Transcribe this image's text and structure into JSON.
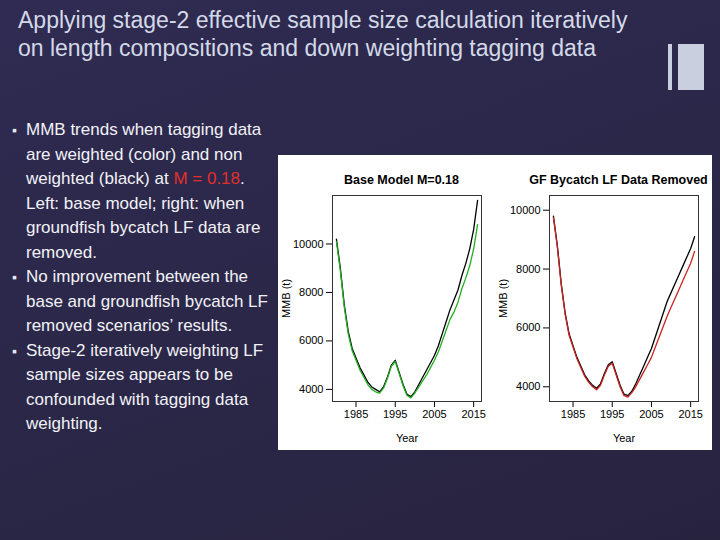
{
  "title": "Applying stage-2 effective sample size calculation iteratively on length compositions and down weighting tagging data",
  "bullets": [
    [
      {
        "text": "MMB trends when tagging data are weighted (color) and non weighted (black) at "
      },
      {
        "text": "M = 0.18",
        "color": "#e0302a"
      },
      {
        "text": ". Left: base model; right: when groundfish bycatch LF data are removed."
      }
    ],
    [
      {
        "text": "No improvement between the base and groundfish bycatch LF removed scenarios’ results."
      }
    ],
    [
      {
        "text": "Stage-2 iteratively weighting LF sample sizes appears to be confounded with tagging data weighting."
      }
    ]
  ],
  "chart_data": [
    {
      "type": "line",
      "title": "Base Model  M=0.18",
      "x_label": "Year",
      "y_label": "MMB (t)",
      "x": [
        1980,
        1981,
        1982,
        1983,
        1984,
        1985,
        1986,
        1987,
        1988,
        1989,
        1990,
        1991,
        1992,
        1993,
        1994,
        1995,
        1996,
        1997,
        1998,
        1999,
        2000,
        2001,
        2002,
        2003,
        2004,
        2005,
        2006,
        2007,
        2008,
        2009,
        2010,
        2011,
        2012,
        2013,
        2014,
        2015,
        2016
      ],
      "series": [
        {
          "color": "#000000",
          "values": [
            10200,
            9000,
            7500,
            6400,
            5700,
            5300,
            4900,
            4600,
            4300,
            4100,
            4000,
            3900,
            4100,
            4500,
            5000,
            5200,
            4700,
            4200,
            3800,
            3700,
            3900,
            4200,
            4500,
            4800,
            5100,
            5400,
            5800,
            6300,
            6800,
            7300,
            7700,
            8100,
            8700,
            9200,
            9800,
            10600,
            11800
          ]
        },
        {
          "color": "#22b022",
          "values": [
            10100,
            8900,
            7400,
            6300,
            5600,
            5200,
            4800,
            4500,
            4200,
            4000,
            3900,
            3850,
            4050,
            4450,
            4950,
            5150,
            4650,
            4150,
            3750,
            3650,
            3850,
            4100,
            4350,
            4600,
            4900,
            5200,
            5550,
            6000,
            6450,
            6900,
            7200,
            7600,
            8150,
            8600,
            9100,
            9800,
            10800
          ]
        }
      ],
      "xlim": [
        1979,
        2017
      ],
      "xticks": [
        1985,
        1995,
        2005,
        2015
      ],
      "ylim": [
        3500,
        12000
      ],
      "yticks": [
        4000,
        6000,
        8000,
        10000
      ]
    },
    {
      "type": "line",
      "title": "GF Bycatch LF Data Removed",
      "x_label": "Year",
      "y_label": "MMB (t)",
      "x": [
        1980,
        1981,
        1982,
        1983,
        1984,
        1985,
        1986,
        1987,
        1988,
        1989,
        1990,
        1991,
        1992,
        1993,
        1994,
        1995,
        1996,
        1997,
        1998,
        1999,
        2000,
        2001,
        2002,
        2003,
        2004,
        2005,
        2006,
        2007,
        2008,
        2009,
        2010,
        2011,
        2012,
        2013,
        2014,
        2015,
        2016
      ],
      "series": [
        {
          "color": "#000000",
          "values": [
            9800,
            8800,
            7500,
            6500,
            5800,
            5400,
            5000,
            4700,
            4400,
            4200,
            4050,
            3950,
            4100,
            4450,
            4750,
            4850,
            4450,
            4050,
            3750,
            3700,
            3850,
            4100,
            4400,
            4700,
            5000,
            5300,
            5700,
            6100,
            6500,
            6900,
            7200,
            7500,
            7800,
            8100,
            8400,
            8700,
            9100
          ]
        },
        {
          "color": "#cc2222",
          "values": [
            9750,
            8750,
            7450,
            6450,
            5750,
            5350,
            4950,
            4650,
            4350,
            4150,
            4000,
            3900,
            4050,
            4400,
            4700,
            4800,
            4400,
            4000,
            3700,
            3650,
            3800,
            4000,
            4250,
            4500,
            4750,
            5000,
            5350,
            5700,
            6050,
            6400,
            6700,
            7000,
            7300,
            7600,
            7900,
            8200,
            8600
          ]
        }
      ],
      "xlim": [
        1979,
        2017
      ],
      "xticks": [
        1985,
        1995,
        2005,
        2015
      ],
      "ylim": [
        3500,
        10500
      ],
      "yticks": [
        4000,
        6000,
        8000,
        10000
      ]
    }
  ]
}
